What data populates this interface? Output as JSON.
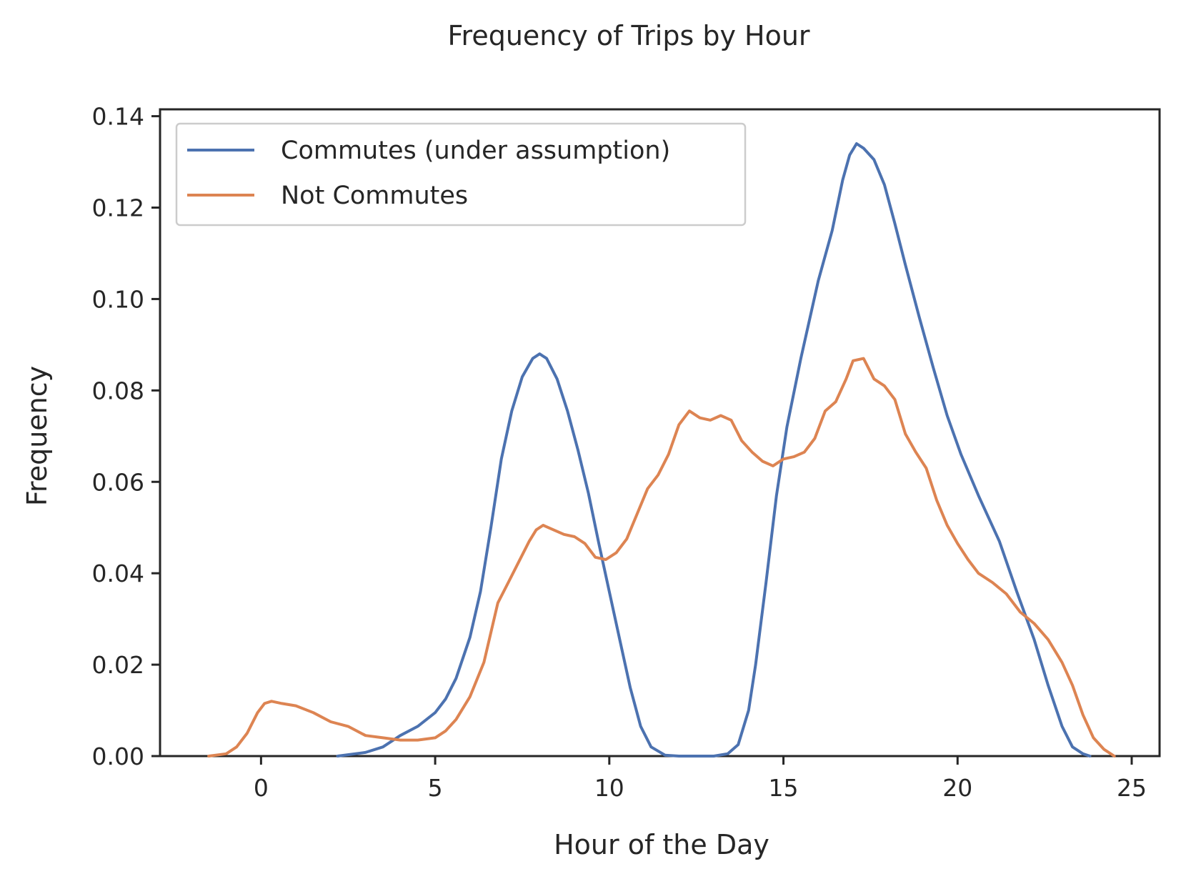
{
  "chart_data": {
    "type": "line",
    "title": "Frequency of Trips by Hour",
    "xlabel": "Hour of the Day",
    "ylabel": "Frequency",
    "xlim": [
      -2.9,
      25.8
    ],
    "ylim": [
      0,
      0.1415
    ],
    "xticks": [
      0,
      5,
      10,
      15,
      20,
      25
    ],
    "xtick_labels": [
      "0",
      "5",
      "10",
      "15",
      "20",
      "25"
    ],
    "yticks": [
      0,
      0.02,
      0.04,
      0.06,
      0.08,
      0.1,
      0.12,
      0.14
    ],
    "ytick_labels": [
      "0.00",
      "0.02",
      "0.04",
      "0.06",
      "0.08",
      "0.10",
      "0.12",
      "0.14"
    ],
    "grid": false,
    "legend_position": "upper-left",
    "series": [
      {
        "name": "Commutes (under assumption)",
        "color": "#4c72b0",
        "points": [
          [
            2.2,
            0.0
          ],
          [
            3.0,
            0.0008
          ],
          [
            3.5,
            0.002
          ],
          [
            4.0,
            0.0045
          ],
          [
            4.5,
            0.0065
          ],
          [
            5.0,
            0.0095
          ],
          [
            5.3,
            0.0125
          ],
          [
            5.6,
            0.017
          ],
          [
            6.0,
            0.026
          ],
          [
            6.3,
            0.036
          ],
          [
            6.6,
            0.05
          ],
          [
            6.9,
            0.065
          ],
          [
            7.2,
            0.0755
          ],
          [
            7.5,
            0.083
          ],
          [
            7.8,
            0.087
          ],
          [
            8.0,
            0.088
          ],
          [
            8.2,
            0.087
          ],
          [
            8.5,
            0.0825
          ],
          [
            8.8,
            0.0755
          ],
          [
            9.1,
            0.067
          ],
          [
            9.4,
            0.0575
          ],
          [
            9.7,
            0.0465
          ],
          [
            10.0,
            0.036
          ],
          [
            10.3,
            0.0255
          ],
          [
            10.6,
            0.015
          ],
          [
            10.9,
            0.0065
          ],
          [
            11.2,
            0.002
          ],
          [
            11.6,
            0.0002
          ],
          [
            12.0,
            0.0
          ],
          [
            13.0,
            0.0
          ],
          [
            13.4,
            0.0005
          ],
          [
            13.7,
            0.0025
          ],
          [
            14.0,
            0.01
          ],
          [
            14.2,
            0.02
          ],
          [
            14.5,
            0.038
          ],
          [
            14.8,
            0.057
          ],
          [
            15.1,
            0.072
          ],
          [
            15.5,
            0.087
          ],
          [
            16.0,
            0.104
          ],
          [
            16.4,
            0.115
          ],
          [
            16.7,
            0.126
          ],
          [
            16.9,
            0.1315
          ],
          [
            17.1,
            0.134
          ],
          [
            17.3,
            0.133
          ],
          [
            17.6,
            0.1305
          ],
          [
            17.9,
            0.125
          ],
          [
            18.2,
            0.1165
          ],
          [
            18.5,
            0.1075
          ],
          [
            18.9,
            0.096
          ],
          [
            19.3,
            0.085
          ],
          [
            19.7,
            0.0745
          ],
          [
            20.1,
            0.066
          ],
          [
            20.6,
            0.057
          ],
          [
            21.2,
            0.047
          ],
          [
            21.7,
            0.036
          ],
          [
            22.2,
            0.0255
          ],
          [
            22.6,
            0.0155
          ],
          [
            23.0,
            0.0065
          ],
          [
            23.3,
            0.002
          ],
          [
            23.6,
            0.0005
          ],
          [
            23.8,
            0.0
          ]
        ]
      },
      {
        "name": "Not Commutes",
        "color": "#dd8452",
        "points": [
          [
            -1.5,
            0.0
          ],
          [
            -1.0,
            0.0005
          ],
          [
            -0.7,
            0.002
          ],
          [
            -0.4,
            0.005
          ],
          [
            -0.1,
            0.0095
          ],
          [
            0.1,
            0.0115
          ],
          [
            0.3,
            0.012
          ],
          [
            0.6,
            0.0115
          ],
          [
            1.0,
            0.011
          ],
          [
            1.5,
            0.0095
          ],
          [
            2.0,
            0.0075
          ],
          [
            2.5,
            0.0065
          ],
          [
            3.0,
            0.0045
          ],
          [
            3.5,
            0.004
          ],
          [
            4.0,
            0.0035
          ],
          [
            4.5,
            0.0035
          ],
          [
            5.0,
            0.004
          ],
          [
            5.3,
            0.0055
          ],
          [
            5.6,
            0.008
          ],
          [
            6.0,
            0.013
          ],
          [
            6.4,
            0.0205
          ],
          [
            6.8,
            0.0335
          ],
          [
            7.1,
            0.038
          ],
          [
            7.4,
            0.0425
          ],
          [
            7.7,
            0.047
          ],
          [
            7.9,
            0.0495
          ],
          [
            8.1,
            0.0505
          ],
          [
            8.4,
            0.0495
          ],
          [
            8.7,
            0.0485
          ],
          [
            9.0,
            0.048
          ],
          [
            9.3,
            0.0465
          ],
          [
            9.6,
            0.0435
          ],
          [
            9.9,
            0.043
          ],
          [
            10.2,
            0.0445
          ],
          [
            10.5,
            0.0475
          ],
          [
            10.8,
            0.053
          ],
          [
            11.1,
            0.0585
          ],
          [
            11.4,
            0.0615
          ],
          [
            11.7,
            0.066
          ],
          [
            12.0,
            0.0725
          ],
          [
            12.3,
            0.0755
          ],
          [
            12.6,
            0.074
          ],
          [
            12.9,
            0.0735
          ],
          [
            13.2,
            0.0745
          ],
          [
            13.5,
            0.0735
          ],
          [
            13.8,
            0.069
          ],
          [
            14.1,
            0.0665
          ],
          [
            14.4,
            0.0645
          ],
          [
            14.7,
            0.0635
          ],
          [
            15.0,
            0.065
          ],
          [
            15.3,
            0.0655
          ],
          [
            15.6,
            0.0665
          ],
          [
            15.9,
            0.0695
          ],
          [
            16.2,
            0.0755
          ],
          [
            16.5,
            0.0775
          ],
          [
            16.8,
            0.0825
          ],
          [
            17.0,
            0.0865
          ],
          [
            17.3,
            0.087
          ],
          [
            17.6,
            0.0825
          ],
          [
            17.9,
            0.081
          ],
          [
            18.2,
            0.078
          ],
          [
            18.5,
            0.0705
          ],
          [
            18.8,
            0.0665
          ],
          [
            19.1,
            0.063
          ],
          [
            19.4,
            0.056
          ],
          [
            19.7,
            0.0505
          ],
          [
            20.0,
            0.0465
          ],
          [
            20.3,
            0.043
          ],
          [
            20.6,
            0.04
          ],
          [
            21.0,
            0.038
          ],
          [
            21.4,
            0.0355
          ],
          [
            21.8,
            0.0315
          ],
          [
            22.2,
            0.029
          ],
          [
            22.6,
            0.0255
          ],
          [
            23.0,
            0.0205
          ],
          [
            23.3,
            0.0155
          ],
          [
            23.6,
            0.009
          ],
          [
            23.9,
            0.004
          ],
          [
            24.2,
            0.0015
          ],
          [
            24.5,
            0.0
          ]
        ]
      }
    ]
  }
}
